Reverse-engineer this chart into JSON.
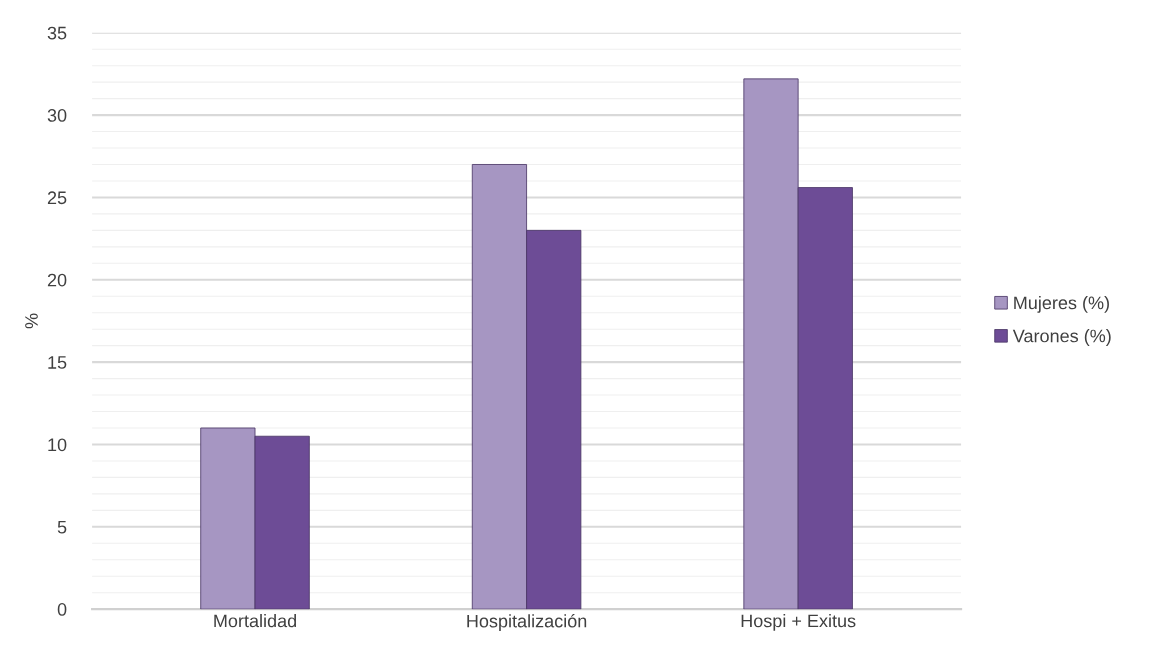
{
  "chart_data": {
    "type": "bar",
    "ylabel": "%",
    "categories": [
      "Mortalidad",
      "Hospitalización",
      "Hospi + Exitus"
    ],
    "series": [
      {
        "name": "Mujeres (%)",
        "color": "#a696c2",
        "values": [
          11,
          27,
          32.2
        ]
      },
      {
        "name": "Varones (%)",
        "color": "#6d4c96",
        "values": [
          10.5,
          23,
          25.6
        ]
      }
    ],
    "ylim": [
      0,
      35
    ],
    "yticks": [
      0,
      {
        "value": 1,
        "label": null
      },
      {
        "value": 2,
        "label": null
      },
      {
        "value": 3,
        "label": null
      },
      {
        "value": 4,
        "label": null
      },
      5,
      {
        "value": 6,
        "label": null
      },
      {
        "value": 7,
        "label": null
      },
      {
        "value": 8,
        "label": null
      },
      {
        "value": 9,
        "label": null
      },
      10,
      {
        "value": 11,
        "label": null
      },
      {
        "value": 12,
        "label": null
      },
      {
        "value": 13,
        "label": null
      },
      {
        "value": 14,
        "label": null
      },
      15,
      {
        "value": 16,
        "label": null
      },
      {
        "value": 17,
        "label": null
      },
      {
        "value": 18,
        "label": null
      },
      {
        "value": 19,
        "label": null
      },
      20,
      {
        "value": 21,
        "label": null
      },
      {
        "value": 22,
        "label": null
      },
      {
        "value": 23,
        "label": null
      },
      {
        "value": 24,
        "label": null
      },
      25,
      {
        "value": 26,
        "label": null
      },
      {
        "value": 27,
        "label": null
      },
      {
        "value": 28,
        "label": null
      },
      {
        "value": 29,
        "label": null
      },
      30,
      {
        "value": 31,
        "label": null
      },
      {
        "value": 32,
        "label": null
      },
      {
        "value": 33,
        "label": null
      },
      {
        "value": 34,
        "label": null
      },
      35
    ],
    "grid": "y",
    "legend": "right"
  }
}
